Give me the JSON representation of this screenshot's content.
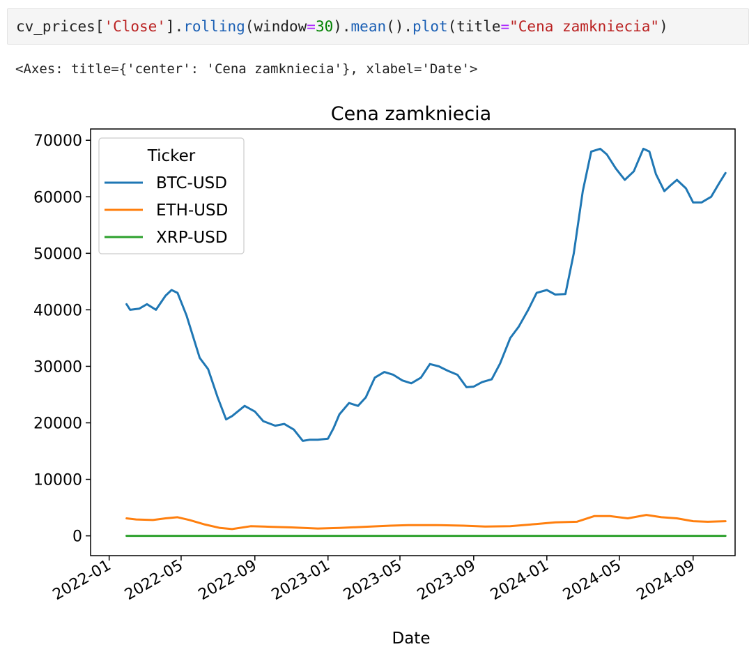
{
  "cell": {
    "code_parts": {
      "p1": "cv_prices[",
      "p2": "'Close'",
      "p3": "].",
      "p4": "rolling",
      "p5": "(window",
      "p6": "=",
      "p7": "30",
      "p8": ").",
      "p9": "mean",
      "p10": "().",
      "p11": "plot",
      "p12": "(title",
      "p13": "=",
      "p14": "\"Cena zamkniecia\"",
      "p15": ")"
    },
    "output_text": "<Axes: title={'center': 'Cena zamkniecia'}, xlabel='Date'>"
  },
  "colors": {
    "btc": "#1f77b4",
    "eth": "#ff7f0e",
    "xrp": "#2ca02c"
  },
  "chart_data": {
    "type": "line",
    "title": "Cena zamkniecia",
    "xlabel": "Date",
    "ylabel": "",
    "x_range": [
      "2021-12-01",
      "2024-11-10"
    ],
    "ylim": [
      -3500,
      72000
    ],
    "y_ticks": [
      0,
      10000,
      20000,
      30000,
      40000,
      50000,
      60000,
      70000
    ],
    "x_ticks": [
      "2022-01",
      "2022-05",
      "2022-09",
      "2023-01",
      "2023-05",
      "2023-09",
      "2024-01",
      "2024-05",
      "2024-09"
    ],
    "legend": {
      "title": "Ticker",
      "placement": "upper-left"
    },
    "grid": false,
    "series": [
      {
        "name": "BTC-USD",
        "x": [
          "2022-01-30",
          "2022-02-05",
          "2022-02-20",
          "2022-03-05",
          "2022-03-20",
          "2022-04-05",
          "2022-04-15",
          "2022-04-25",
          "2022-05-10",
          "2022-06-01",
          "2022-06-15",
          "2022-07-01",
          "2022-07-15",
          "2022-07-25",
          "2022-08-15",
          "2022-09-01",
          "2022-09-15",
          "2022-10-05",
          "2022-10-20",
          "2022-11-05",
          "2022-11-20",
          "2022-12-01",
          "2022-12-15",
          "2023-01-01",
          "2023-01-10",
          "2023-01-20",
          "2023-02-05",
          "2023-02-20",
          "2023-03-05",
          "2023-03-20",
          "2023-04-05",
          "2023-04-20",
          "2023-05-05",
          "2023-05-20",
          "2023-06-05",
          "2023-06-20",
          "2023-07-05",
          "2023-07-20",
          "2023-08-05",
          "2023-08-20",
          "2023-09-01",
          "2023-09-15",
          "2023-10-01",
          "2023-10-15",
          "2023-11-01",
          "2023-11-15",
          "2023-12-01",
          "2023-12-15",
          "2024-01-01",
          "2024-01-15",
          "2024-02-01",
          "2024-02-15",
          "2024-03-01",
          "2024-03-15",
          "2024-03-30",
          "2024-04-10",
          "2024-04-25",
          "2024-05-10",
          "2024-05-25",
          "2024-06-10",
          "2024-06-20",
          "2024-07-01",
          "2024-07-15",
          "2024-07-25",
          "2024-08-05",
          "2024-08-20",
          "2024-09-01",
          "2024-09-15",
          "2024-10-01",
          "2024-10-15",
          "2024-10-25"
        ],
        "values": [
          41000,
          40000,
          40200,
          41000,
          40000,
          42500,
          43500,
          43000,
          39000,
          31500,
          29500,
          24500,
          20600,
          21200,
          23000,
          22000,
          20300,
          19500,
          19800,
          18800,
          16800,
          17000,
          17000,
          17200,
          19000,
          21500,
          23500,
          23000,
          24500,
          28000,
          29000,
          28500,
          27500,
          27000,
          28000,
          30400,
          30000,
          29200,
          28500,
          26300,
          26400,
          27200,
          27700,
          30500,
          35000,
          37000,
          40000,
          43000,
          43500,
          42700,
          42800,
          50000,
          61000,
          68000,
          68500,
          67500,
          65000,
          63000,
          64500,
          68500,
          68000,
          64000,
          61000,
          62000,
          63000,
          61500,
          59000,
          59000,
          60000,
          62500,
          64200
        ]
      },
      {
        "name": "ETH-USD",
        "x": [
          "2022-01-30",
          "2022-02-15",
          "2022-03-15",
          "2022-04-05",
          "2022-04-25",
          "2022-05-15",
          "2022-06-10",
          "2022-07-05",
          "2022-07-25",
          "2022-08-25",
          "2022-10-01",
          "2022-11-01",
          "2022-12-15",
          "2023-01-20",
          "2023-03-01",
          "2023-04-15",
          "2023-05-15",
          "2023-07-01",
          "2023-08-15",
          "2023-09-20",
          "2023-11-01",
          "2023-12-15",
          "2024-01-15",
          "2024-02-20",
          "2024-03-20",
          "2024-04-15",
          "2024-05-15",
          "2024-06-15",
          "2024-07-10",
          "2024-08-05",
          "2024-09-01",
          "2024-09-25",
          "2024-10-25"
        ],
        "values": [
          3100,
          2900,
          2800,
          3100,
          3300,
          2800,
          2000,
          1400,
          1200,
          1700,
          1600,
          1500,
          1300,
          1400,
          1600,
          1800,
          1900,
          1900,
          1800,
          1650,
          1700,
          2100,
          2400,
          2500,
          3500,
          3500,
          3100,
          3700,
          3300,
          3100,
          2600,
          2500,
          2600
        ]
      },
      {
        "name": "XRP-USD",
        "x": [
          "2022-01-30",
          "2022-06-01",
          "2022-12-01",
          "2023-06-01",
          "2023-12-01",
          "2024-06-01",
          "2024-10-25"
        ],
        "values": [
          0.8,
          0.6,
          0.4,
          0.5,
          0.6,
          0.55,
          0.55
        ]
      }
    ]
  }
}
